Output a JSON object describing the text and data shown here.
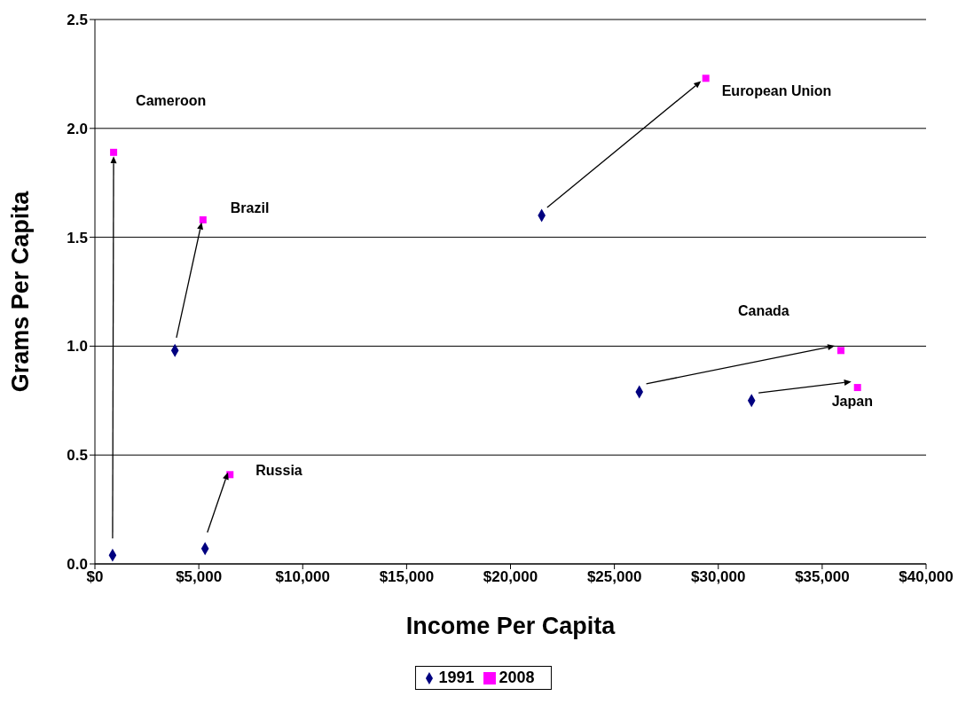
{
  "chart_data": {
    "type": "scatter",
    "xlabel": "Income Per Capita",
    "ylabel": "Grams Per Capita",
    "xlim": [
      0,
      40000
    ],
    "ylim": [
      0,
      2.5
    ],
    "xticks": [
      {
        "value": 0,
        "label": "$0"
      },
      {
        "value": 5000,
        "label": "$5,000"
      },
      {
        "value": 10000,
        "label": "$10,000"
      },
      {
        "value": 15000,
        "label": "$15,000"
      },
      {
        "value": 20000,
        "label": "$20,000"
      },
      {
        "value": 25000,
        "label": "$25,000"
      },
      {
        "value": 30000,
        "label": "$30,000"
      },
      {
        "value": 35000,
        "label": "$35,000"
      },
      {
        "value": 40000,
        "label": "$40,000"
      }
    ],
    "yticks": [
      {
        "value": 0,
        "label": "0.0"
      },
      {
        "value": 0.5,
        "label": "0.5"
      },
      {
        "value": 1,
        "label": "1.0"
      },
      {
        "value": 1.5,
        "label": "1.5"
      },
      {
        "value": 2,
        "label": "2.0"
      },
      {
        "value": 2.5,
        "label": "2.5"
      }
    ],
    "grid": "y",
    "legend": "bottom",
    "series": [
      {
        "name": "1991",
        "color": "#000080",
        "marker": "diamond",
        "x": [
          850,
          3850,
          5300,
          21500,
          26200,
          31600
        ],
        "values": [
          0.04,
          0.98,
          0.07,
          1.6,
          0.79,
          0.75
        ]
      },
      {
        "name": "2008",
        "color": "#ff00ff",
        "marker": "square",
        "x": [
          900,
          5200,
          6500,
          29400,
          35900,
          36700
        ],
        "values": [
          1.89,
          1.58,
          0.41,
          2.23,
          0.98,
          0.81
        ]
      }
    ],
    "annotations": [
      "Cameroon",
      {
        "text": "Brazil",
        "x": 5200,
        "y": 1.58
      },
      {
        "text": "Russia",
        "x": 6500,
        "y": 0.41
      },
      {
        "text": "European Union",
        "x": 29400,
        "y": 2.23
      },
      "Canada",
      {
        "text": "Japan",
        "x": 36700,
        "y": 0.81
      }
    ]
  }
}
